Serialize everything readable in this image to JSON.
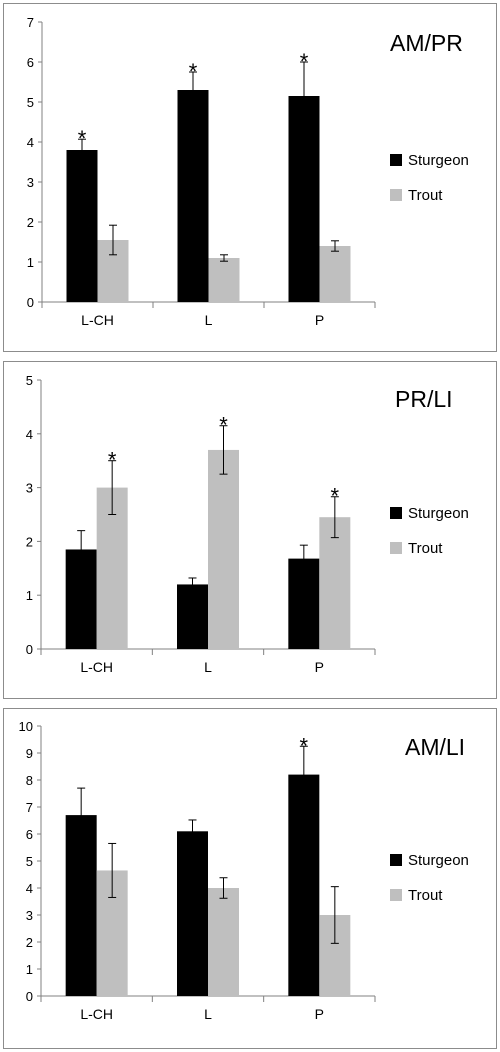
{
  "colors": {
    "sturgeon": "#000000",
    "trout": "#bfbfbf",
    "axis": "#808080"
  },
  "chart_data": [
    {
      "type": "bar",
      "title": "AM/PR",
      "categories": [
        "L-CH",
        "L",
        "P"
      ],
      "ylim": [
        0,
        7
      ],
      "yticks": [
        0,
        1,
        2,
        3,
        4,
        5,
        6,
        7
      ],
      "legend_position": "right",
      "series": [
        {
          "name": "Sturgeon",
          "values": [
            3.8,
            5.3,
            5.15
          ],
          "errors": [
            0.27,
            0.45,
            0.85
          ],
          "significant": [
            true,
            true,
            true
          ]
        },
        {
          "name": "Trout",
          "values": [
            1.55,
            1.1,
            1.4
          ],
          "errors": [
            0.37,
            0.08,
            0.13
          ],
          "significant": [
            false,
            false,
            false
          ]
        }
      ]
    },
    {
      "type": "bar",
      "title": "PR/LI",
      "categories": [
        "L-CH",
        "L",
        "P"
      ],
      "ylim": [
        0,
        5
      ],
      "yticks": [
        0,
        1,
        2,
        3,
        4,
        5
      ],
      "legend_position": "right",
      "series": [
        {
          "name": "Sturgeon",
          "values": [
            1.85,
            1.2,
            1.68
          ],
          "errors": [
            0.35,
            0.12,
            0.25
          ],
          "significant": [
            false,
            false,
            false
          ]
        },
        {
          "name": "Trout",
          "values": [
            3.0,
            3.7,
            2.45
          ],
          "errors": [
            0.5,
            0.45,
            0.38
          ],
          "significant": [
            true,
            true,
            true
          ]
        }
      ]
    },
    {
      "type": "bar",
      "title": "AM/LI",
      "categories": [
        "L-CH",
        "L",
        "P"
      ],
      "ylim": [
        0,
        10
      ],
      "yticks": [
        0,
        1,
        2,
        3,
        4,
        5,
        6,
        7,
        8,
        9,
        10
      ],
      "legend_position": "right",
      "series": [
        {
          "name": "Sturgeon",
          "values": [
            6.7,
            6.1,
            8.2
          ],
          "errors": [
            1.0,
            0.42,
            1.05
          ],
          "significant": [
            false,
            false,
            true
          ]
        },
        {
          "name": "Trout",
          "values": [
            4.65,
            4.0,
            3.0
          ],
          "errors": [
            1.0,
            0.38,
            1.05
          ],
          "significant": [
            false,
            false,
            false
          ]
        }
      ],
      "significance_mark": "*"
    }
  ],
  "significance_mark": "*"
}
